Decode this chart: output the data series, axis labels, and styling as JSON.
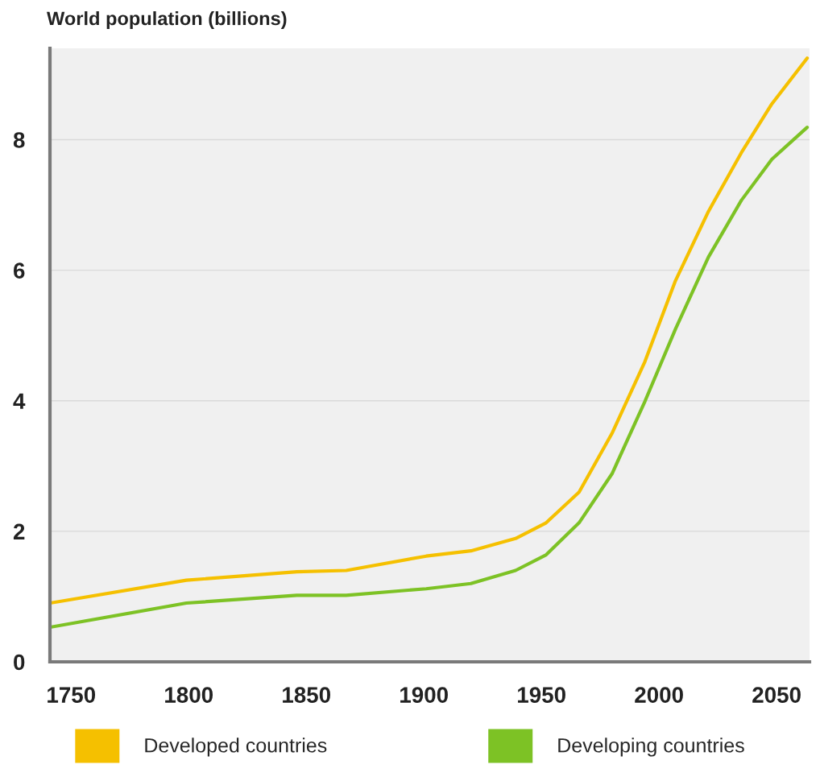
{
  "chart_data": {
    "type": "line",
    "ylabel": "World population (billions)",
    "xlim": [
      1741,
      2064
    ],
    "xticks": [
      1750,
      1800,
      1850,
      1900,
      1950,
      2000,
      2050
    ],
    "ylim": [
      0,
      9.4
    ],
    "yticks": [
      0,
      2,
      4,
      6,
      8
    ],
    "grid": "y",
    "legend": "bottom",
    "marker": "none",
    "line_style": "solid",
    "series": [
      {
        "name": "Developed countries",
        "color": "#f5c000",
        "x": [
          1741,
          1799,
          1846,
          1867,
          1901,
          1920,
          1939,
          1952,
          1966,
          1980,
          1994,
          2007,
          2021,
          2035,
          2048,
          2063
        ],
        "values": [
          0.9,
          1.25,
          1.38,
          1.4,
          1.62,
          1.7,
          1.89,
          2.13,
          2.6,
          3.5,
          4.6,
          5.84,
          6.9,
          7.8,
          8.55,
          9.25
        ]
      },
      {
        "name": "Developing countries",
        "color": "#7dc225",
        "x": [
          1741,
          1799,
          1846,
          1867,
          1901,
          1920,
          1939,
          1952,
          1966,
          1980,
          1994,
          2007,
          2021,
          2035,
          2048,
          2063
        ],
        "values": [
          0.53,
          0.9,
          1.02,
          1.02,
          1.12,
          1.2,
          1.4,
          1.64,
          2.13,
          2.88,
          3.99,
          5.1,
          6.2,
          7.07,
          7.7,
          8.19
        ]
      }
    ]
  }
}
